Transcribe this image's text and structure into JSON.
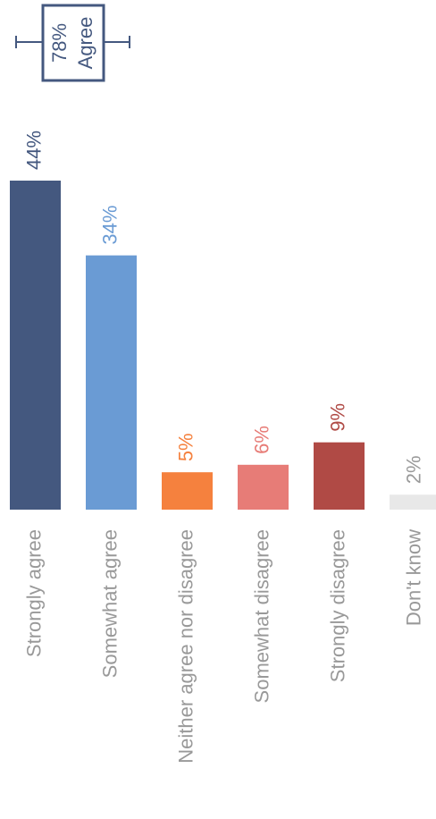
{
  "chart_data": {
    "type": "bar",
    "categories": [
      "Strongly agree",
      "Somewhat agree",
      "Neither agree nor disagree",
      "Somewhat disagree",
      "Strongly disagree",
      "Don't know"
    ],
    "values": [
      44,
      34,
      5,
      6,
      9,
      2
    ],
    "value_labels": [
      "44%",
      "34%",
      "5%",
      "6%",
      "9%",
      "2%"
    ],
    "colors": [
      "#44587f",
      "#6a9bd4",
      "#f5813e",
      "#e77c77",
      "#b04a45",
      "#e8e8e8"
    ],
    "label_colors": [
      "#44587f",
      "#6a9bd4",
      "#f5813e",
      "#e77c77",
      "#b04a45",
      "#999999"
    ],
    "annotation": [
      "78%",
      "Agree"
    ]
  }
}
